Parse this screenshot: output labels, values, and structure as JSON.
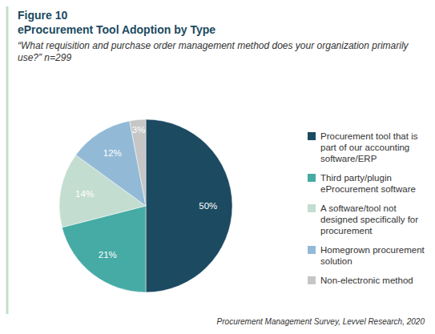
{
  "chart_data": {
    "type": "pie",
    "figure_label": "Figure 10",
    "title": "eProcurement Tool Adoption by Type",
    "subtitle": "“What requisition and purchase order management method does your organization primarily use?” n=299",
    "categories": [
      "Procurement tool that is part of our accounting software/ERP",
      "Third party/plugin eProcurement software",
      "A software/tool not designed specifically for procurement",
      "Homegrown procurement solution",
      "Non-electronic method"
    ],
    "values": [
      50,
      21,
      14,
      12,
      3
    ],
    "value_labels": [
      "50%",
      "21%",
      "14%",
      "12%",
      "3%"
    ],
    "colors": [
      "#1b4a61",
      "#46aaa5",
      "#c4ddd1",
      "#92bad7",
      "#c6c6c6"
    ],
    "data_labels": true,
    "legend": "right",
    "source": "Procurement Management Survey, Levvel Research, 2020"
  }
}
